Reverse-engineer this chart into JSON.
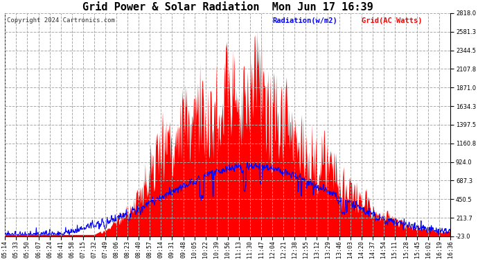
{
  "title": "Grid Power & Solar Radiation  Mon Jun 17 16:39",
  "copyright": "Copyright 2024 Cartronics.com",
  "legend_radiation": "Radiation(w/m2)",
  "legend_grid": "Grid(AC Watts)",
  "yticks": [
    2818.0,
    2581.3,
    2344.5,
    2107.8,
    1871.0,
    1634.3,
    1397.5,
    1160.8,
    924.0,
    687.3,
    450.5,
    213.7,
    -23.0
  ],
  "ymin": -23.0,
  "ymax": 2818.0,
  "xtick_labels": [
    "05:14",
    "05:33",
    "05:50",
    "06:07",
    "06:24",
    "06:41",
    "06:58",
    "07:15",
    "07:32",
    "07:49",
    "08:06",
    "08:23",
    "08:40",
    "08:57",
    "09:14",
    "09:31",
    "09:48",
    "10:05",
    "10:22",
    "10:39",
    "10:56",
    "11:13",
    "11:30",
    "11:47",
    "12:04",
    "12:21",
    "12:38",
    "12:55",
    "13:12",
    "13:29",
    "13:46",
    "14:03",
    "14:20",
    "14:37",
    "14:54",
    "15:11",
    "15:28",
    "15:45",
    "16:02",
    "16:19",
    "16:36"
  ],
  "background_color": "#ffffff",
  "plot_bg_color": "#ffffff",
  "grid_color": "#aaaaaa",
  "red_color": "#ff0000",
  "blue_color": "#0000ff",
  "title_fontsize": 11,
  "axis_fontsize": 6,
  "copyright_fontsize": 6.5
}
